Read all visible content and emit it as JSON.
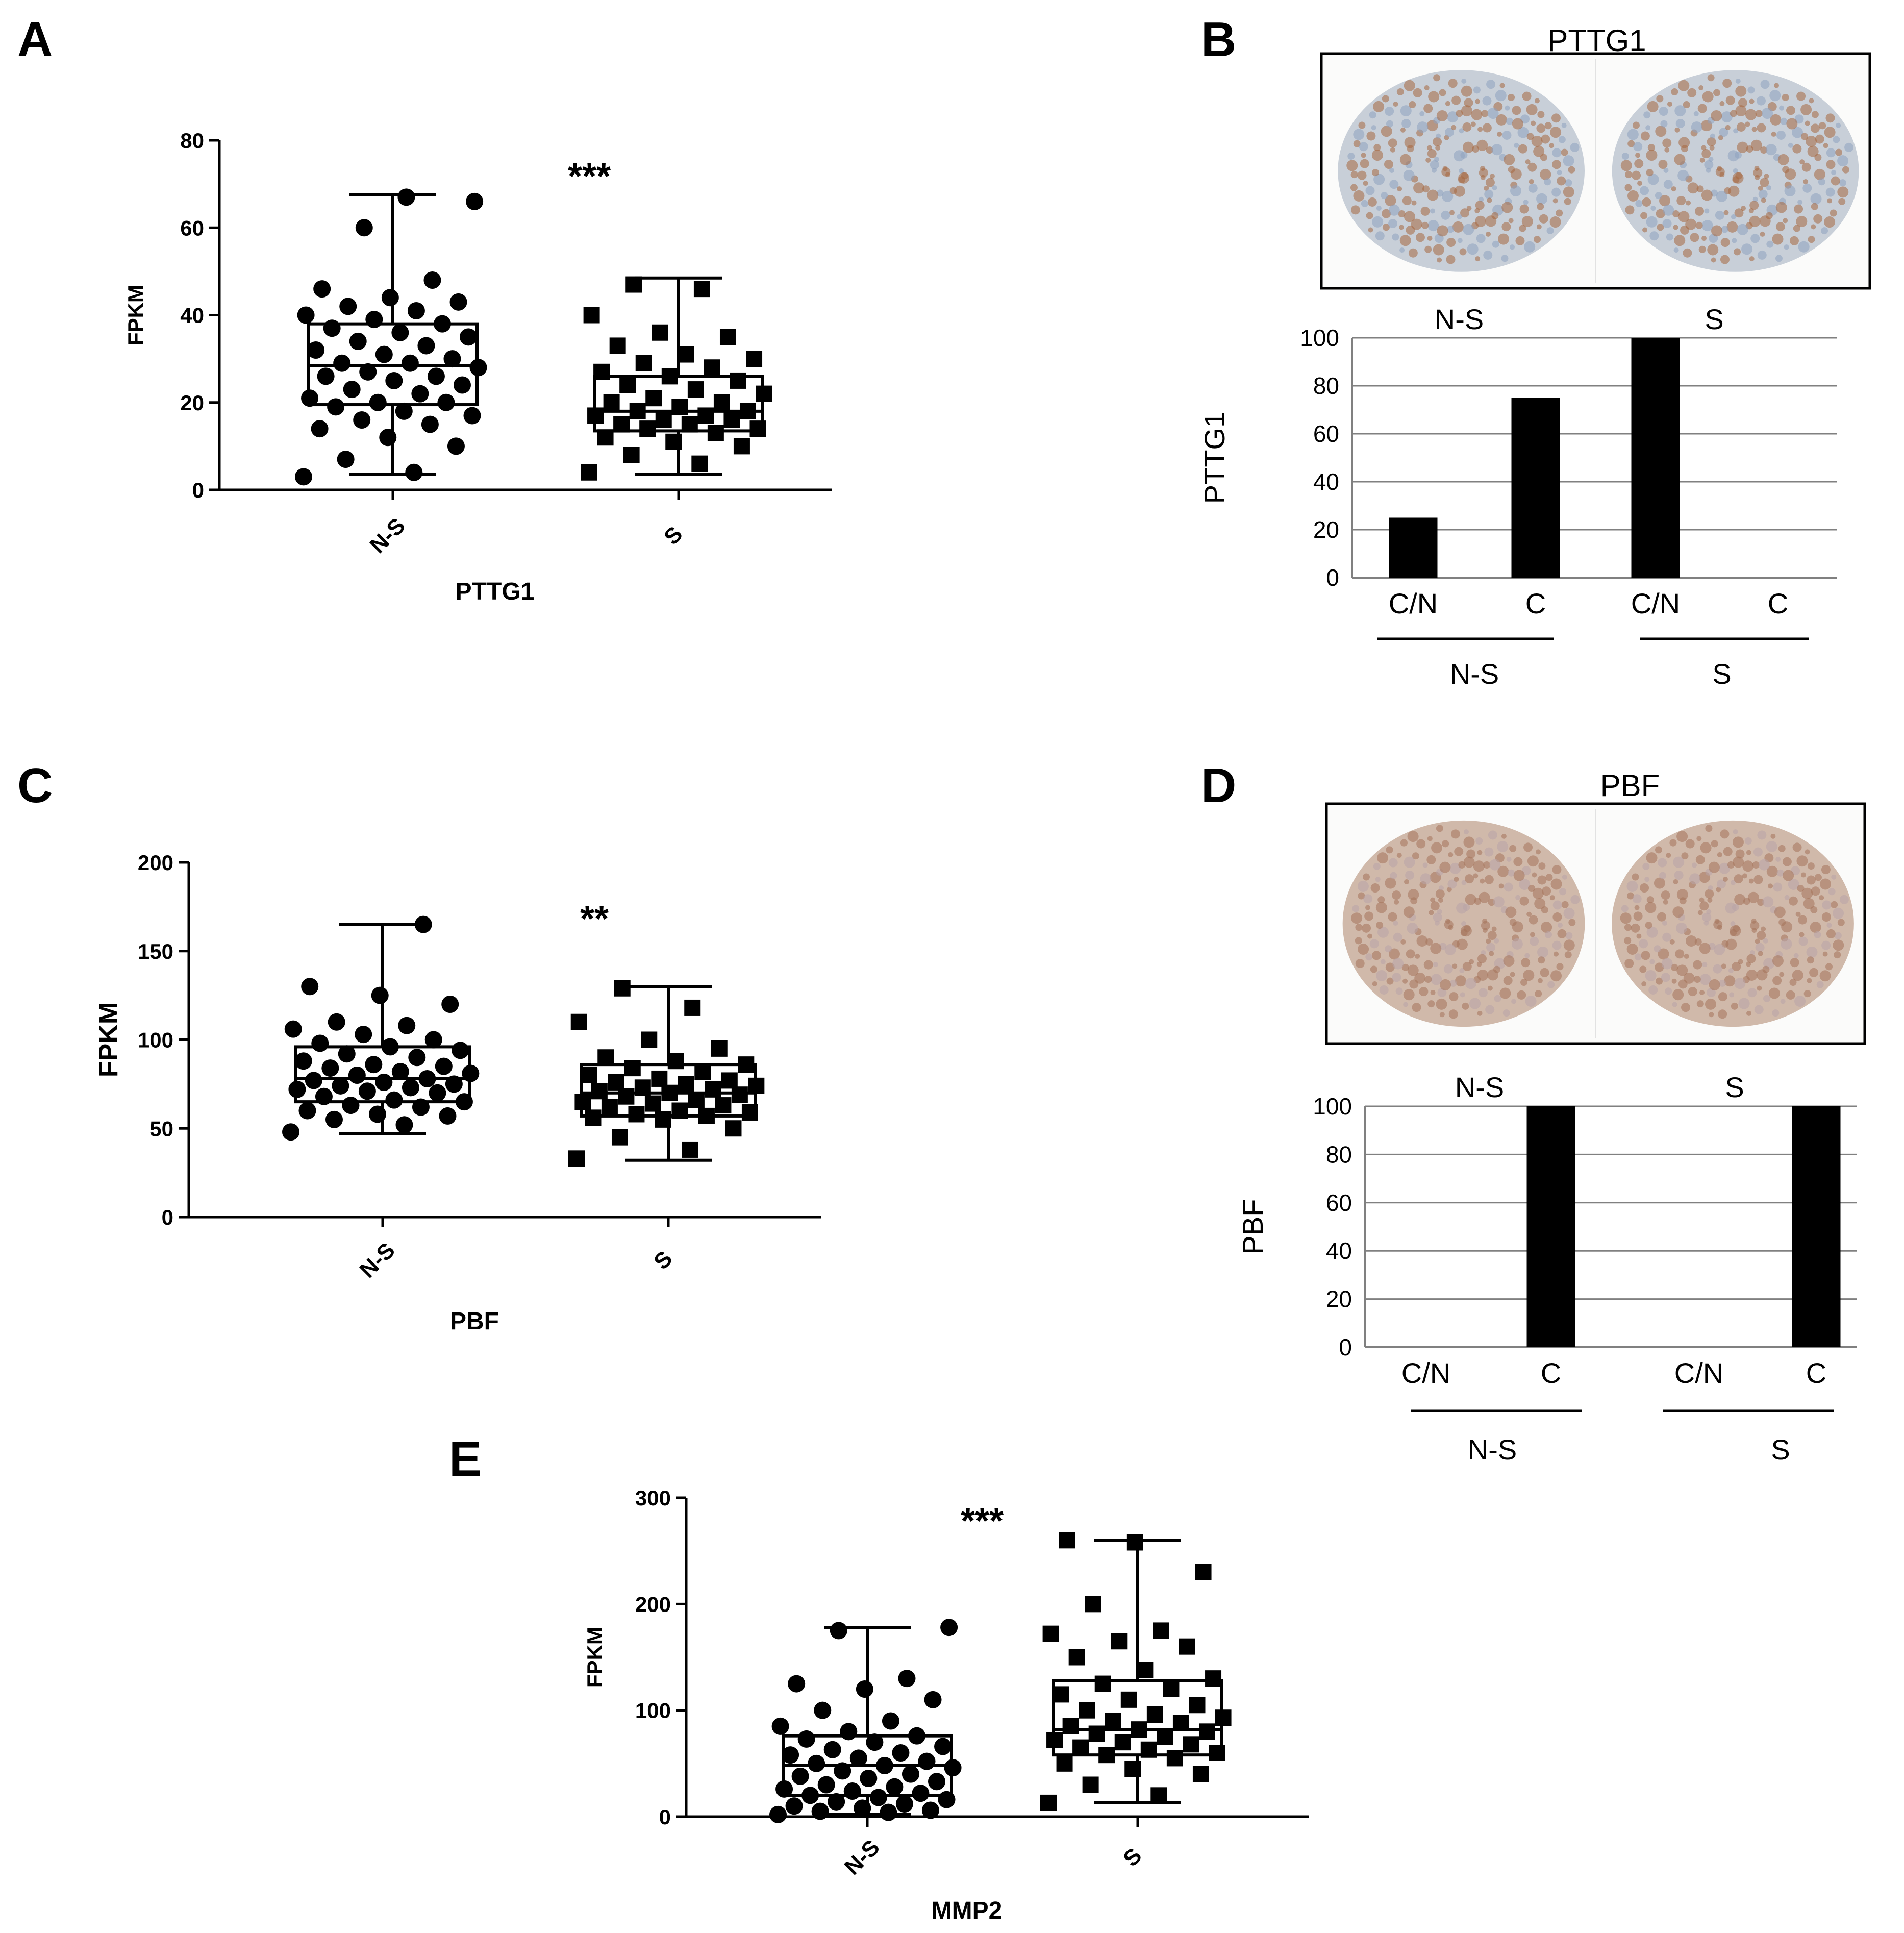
{
  "panel_letters": [
    "A",
    "B",
    "C",
    "D",
    "E"
  ],
  "chart_data": [
    {
      "panel": "A",
      "type": "scatter",
      "title": "",
      "xlabel": "PTTG1",
      "ylabel": "FPKM",
      "significance": "***",
      "ylim": [
        0,
        80
      ],
      "yticks": [
        0,
        20,
        40,
        60,
        80
      ],
      "categories": [
        "N-S",
        "S"
      ],
      "marker": [
        "circle",
        "square"
      ],
      "box": [
        {
          "min": 3.5,
          "q1": 19.5,
          "median": 28.5,
          "q3": 38,
          "max": 67.5
        },
        {
          "min": 3.5,
          "q1": 13.5,
          "median": 18,
          "q3": 26,
          "max": 48.5
        }
      ],
      "points": [
        [
          3,
          4,
          7,
          10,
          12,
          14,
          15,
          16,
          17,
          18,
          19,
          20,
          20,
          21,
          22,
          23,
          24,
          25,
          26,
          26,
          27,
          28,
          29,
          29,
          30,
          31,
          32,
          33,
          34,
          35,
          36,
          37,
          38,
          39,
          40,
          41,
          42,
          43,
          44,
          46,
          48,
          60,
          66,
          67
        ],
        [
          4,
          6,
          8,
          10,
          11,
          12,
          13,
          14,
          14,
          15,
          15,
          16,
          16,
          17,
          17,
          18,
          18,
          19,
          20,
          20,
          21,
          22,
          23,
          24,
          25,
          26,
          27,
          28,
          29,
          30,
          31,
          33,
          35,
          36,
          40,
          46,
          47
        ]
      ]
    },
    {
      "panel": "B",
      "type": "bar",
      "title": "PTTG1",
      "xlabel": "",
      "ylabel": "PTTG1",
      "ylim": [
        0,
        100
      ],
      "yticks": [
        0,
        20,
        40,
        60,
        80,
        100
      ],
      "groups": [
        "N-S",
        "S"
      ],
      "categories": [
        "C/N",
        "C",
        "C/N",
        "C"
      ],
      "values": [
        25,
        75,
        100,
        0
      ]
    },
    {
      "panel": "C",
      "type": "scatter",
      "title": "",
      "xlabel": "PBF",
      "ylabel": "FPKM",
      "significance": "**",
      "ylim": [
        0,
        200
      ],
      "yticks": [
        0,
        50,
        100,
        150,
        200
      ],
      "categories": [
        "N-S",
        "S"
      ],
      "marker": [
        "circle",
        "square"
      ],
      "box": [
        {
          "min": 47,
          "q1": 65,
          "median": 78,
          "q3": 96,
          "max": 165
        },
        {
          "min": 32,
          "q1": 57,
          "median": 70,
          "q3": 86,
          "max": 130
        }
      ],
      "points": [
        [
          48,
          52,
          55,
          57,
          58,
          60,
          62,
          63,
          65,
          66,
          68,
          70,
          71,
          72,
          73,
          74,
          75,
          76,
          77,
          78,
          80,
          81,
          82,
          84,
          85,
          86,
          88,
          90,
          92,
          94,
          96,
          98,
          100,
          103,
          106,
          108,
          110,
          120,
          125,
          130,
          165
        ],
        [
          33,
          38,
          45,
          50,
          55,
          56,
          57,
          58,
          59,
          60,
          62,
          63,
          64,
          65,
          66,
          68,
          69,
          70,
          71,
          72,
          73,
          74,
          75,
          76,
          77,
          78,
          80,
          82,
          84,
          86,
          88,
          90,
          95,
          100,
          110,
          118,
          129
        ]
      ]
    },
    {
      "panel": "D",
      "type": "bar",
      "title": "PBF",
      "xlabel": "",
      "ylabel": "PBF",
      "ylim": [
        0,
        100
      ],
      "yticks": [
        0,
        20,
        40,
        60,
        80,
        100
      ],
      "groups": [
        "N-S",
        "S"
      ],
      "categories": [
        "C/N",
        "C",
        "C/N",
        "C"
      ],
      "values": [
        0,
        100,
        0,
        100
      ]
    },
    {
      "panel": "E",
      "type": "scatter",
      "title": "",
      "xlabel": "MMP2",
      "ylabel": "FPKM",
      "significance": "***",
      "ylim": [
        0,
        300
      ],
      "yticks": [
        0,
        100,
        200,
        300
      ],
      "categories": [
        "N-S",
        "S"
      ],
      "marker": [
        "circle",
        "square"
      ],
      "box": [
        {
          "min": 2,
          "q1": 20,
          "median": 48,
          "q3": 76,
          "max": 178
        },
        {
          "min": 13,
          "q1": 58,
          "median": 82,
          "q3": 128,
          "max": 260
        }
      ],
      "points": [
        [
          2,
          4,
          5,
          6,
          8,
          10,
          12,
          14,
          16,
          18,
          20,
          22,
          24,
          26,
          28,
          30,
          33,
          36,
          38,
          40,
          43,
          46,
          48,
          50,
          52,
          55,
          58,
          60,
          63,
          66,
          70,
          73,
          76,
          80,
          85,
          90,
          100,
          110,
          120,
          125,
          130,
          175,
          178
        ],
        [
          13,
          20,
          30,
          40,
          45,
          50,
          55,
          58,
          60,
          63,
          65,
          68,
          70,
          72,
          75,
          78,
          80,
          82,
          85,
          88,
          90,
          93,
          96,
          100,
          105,
          110,
          115,
          120,
          125,
          130,
          138,
          150,
          160,
          165,
          172,
          175,
          200,
          230,
          258,
          260
        ]
      ]
    }
  ]
}
